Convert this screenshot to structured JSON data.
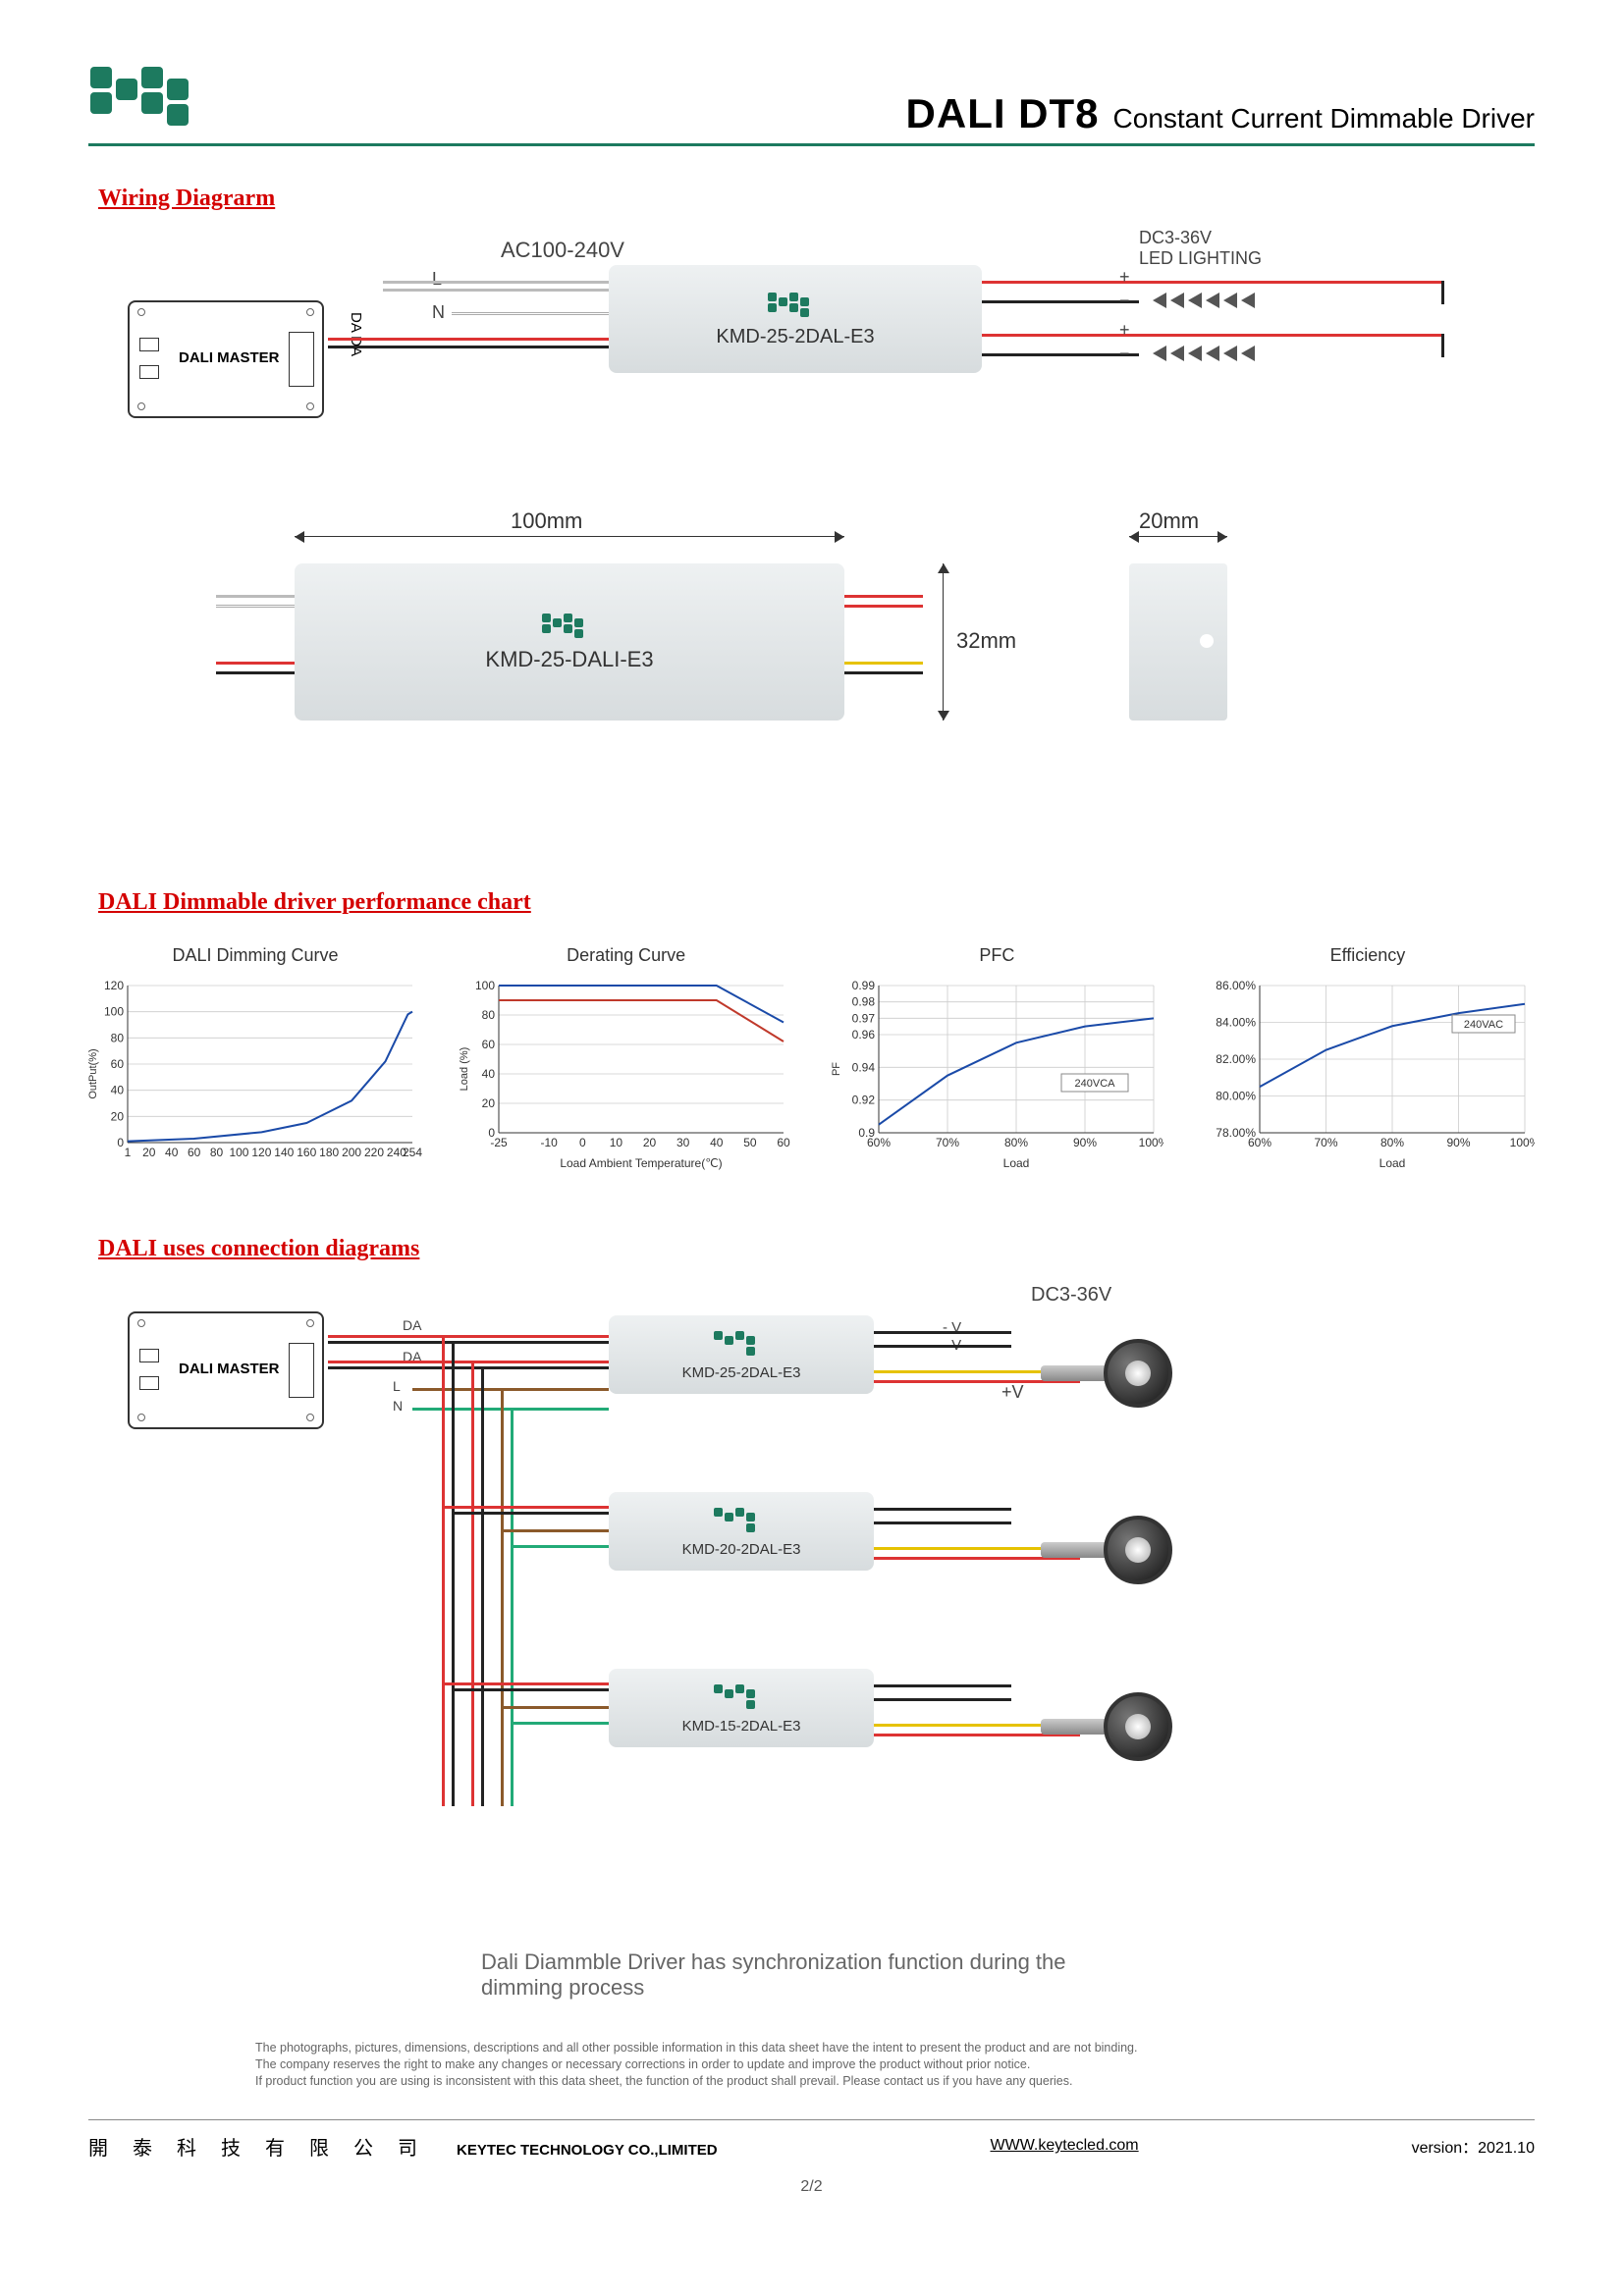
{
  "header": {
    "product": "DALI DT8",
    "subtitle": "Constant Current Dimmable Driver"
  },
  "brand_color": "#1d7a5f",
  "sections": {
    "wiring": "Wiring Diagrarm",
    "perf": "DALI Dimmable driver  performance chart",
    "conn": "DALI uses connection diagrams"
  },
  "wiring": {
    "master_label": "DALI MASTER",
    "input_label": "AC100-240V",
    "L": "L",
    "N": "N",
    "da": "DA  DA",
    "driver_model": "KMD-25-2DAL-E3",
    "output_label": "DC3-36V\nLED LIGHTING",
    "plus": "+",
    "minus": "−"
  },
  "dimensions": {
    "width": "100mm",
    "height": "32mm",
    "depth": "20mm",
    "model": "KMD-25-DALI-E3"
  },
  "charts": {
    "dimming": {
      "title": "DALI Dimming Curve",
      "y_title": "OutPut(%)",
      "y_ticks": [
        0,
        20,
        40,
        60,
        80,
        100,
        120
      ],
      "x_ticks": [
        1,
        20,
        40,
        60,
        80,
        100,
        120,
        140,
        160,
        180,
        200,
        220,
        240,
        254
      ],
      "series": [
        {
          "color": "#1a4aa8",
          "points": [
            [
              1,
              1
            ],
            [
              60,
              3
            ],
            [
              120,
              8
            ],
            [
              160,
              15
            ],
            [
              200,
              32
            ],
            [
              230,
              62
            ],
            [
              250,
              98
            ],
            [
              254,
              100
            ]
          ]
        }
      ]
    },
    "derating": {
      "title": "Derating Curve",
      "y_title": "Load (%)",
      "x_title": "Load Ambient Temperature(℃)",
      "y_ticks": [
        0,
        20,
        40,
        60,
        80,
        100
      ],
      "x_ticks": [
        -25,
        -10,
        0,
        10,
        20,
        30,
        40,
        50,
        60
      ],
      "series": [
        {
          "color": "#1a4aa8",
          "points": [
            [
              -25,
              100
            ],
            [
              40,
              100
            ],
            [
              60,
              75
            ]
          ]
        },
        {
          "color": "#c0392b",
          "points": [
            [
              -25,
              90
            ],
            [
              40,
              90
            ],
            [
              60,
              62
            ]
          ]
        }
      ]
    },
    "pfc": {
      "title": "PFC",
      "y_title": "PF",
      "x_title": "Load",
      "y_ticks": [
        0.9,
        0.92,
        0.94,
        0.96,
        0.97,
        0.98,
        0.99
      ],
      "x_ticks": [
        "60%",
        "70%",
        "80%",
        "90%",
        "100%"
      ],
      "annotation": "240VCA",
      "series": [
        {
          "color": "#1a4aa8",
          "points": [
            [
              60,
              0.905
            ],
            [
              70,
              0.935
            ],
            [
              80,
              0.955
            ],
            [
              90,
              0.965
            ],
            [
              100,
              0.97
            ]
          ]
        }
      ]
    },
    "eff": {
      "title": "Efficiency",
      "x_title": "Load",
      "y_ticks": [
        "78.00%",
        "80.00%",
        "82.00%",
        "84.00%",
        "86.00%"
      ],
      "x_ticks": [
        "60%",
        "70%",
        "80%",
        "90%",
        "100%"
      ],
      "annotation": "240VAC",
      "series": [
        {
          "color": "#1a4aa8",
          "points": [
            [
              60,
              80.5
            ],
            [
              70,
              82.5
            ],
            [
              80,
              83.8
            ],
            [
              90,
              84.5
            ],
            [
              100,
              85
            ]
          ]
        }
      ]
    }
  },
  "connection": {
    "master_label": "DALI MASTER",
    "da": "DA",
    "L": "L",
    "N": "N",
    "output_v": "DC3-36V",
    "minusV": "- V",
    "plusV": "+V",
    "drivers": [
      "KMD-25-2DAL-E3",
      "KMD-20-2DAL-E3",
      "KMD-15-2DAL-E3"
    ],
    "note": "Dali Diammble Driver has synchronization function during the dimming process"
  },
  "disclaimer": "The photographs, pictures, dimensions, descriptions and all other possible information in this data sheet have the intent to present the product and are not binding.\nThe company reserves the right to make any changes or necessary corrections in order to update and improve the product without prior notice.\nIf product function you are using is inconsistent with this data sheet, the function of the product shall prevail. Please contact us if you have any queries.",
  "footer": {
    "company_cn": "開 泰 科 技 有 限 公 司",
    "company_en": "KEYTEC TECHNOLOGY CO.,LIMITED",
    "url": "WWW.keytecled.com",
    "version": "version：2021.10",
    "page": "2/2"
  }
}
